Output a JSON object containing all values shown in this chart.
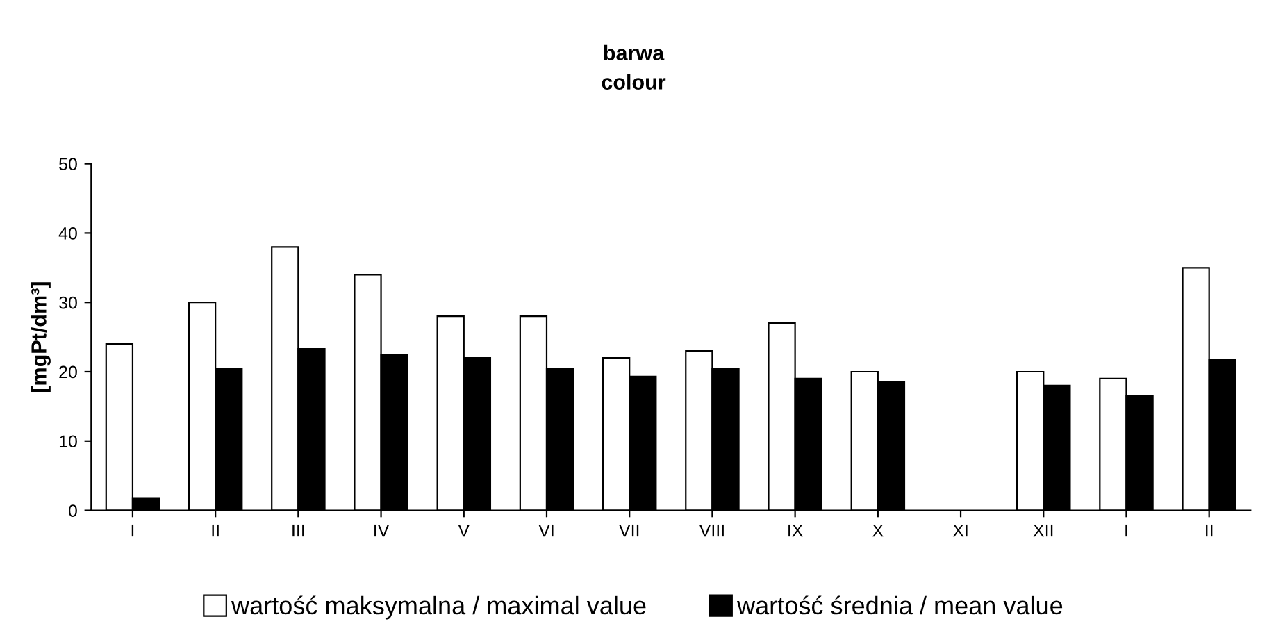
{
  "chart_data": {
    "type": "bar",
    "title": "barwa\ncolour",
    "ylabel": "[mgPt/dm³]",
    "categories": [
      "I",
      "II",
      "III",
      "IV",
      "V",
      "VI",
      "VII",
      "VIII",
      "IX",
      "X",
      "XI",
      "XII",
      "I",
      "II"
    ],
    "series": [
      {
        "name": "wartość maksymalna / maximal value",
        "color": "#ffffff",
        "values": [
          24,
          30,
          38,
          34,
          28,
          28,
          22,
          23,
          27,
          20,
          null,
          20,
          19,
          35
        ]
      },
      {
        "name": "wartość średnia / mean value",
        "color": "#000000",
        "values": [
          1.7,
          20.5,
          23.3,
          22.5,
          22,
          20.5,
          19.3,
          20.5,
          19,
          18.5,
          null,
          18,
          16.5,
          21.7
        ]
      }
    ],
    "ylim": [
      0,
      50
    ],
    "yticks": [
      0,
      10,
      20,
      30,
      40,
      50
    ],
    "grid": false,
    "legend": "bottom"
  }
}
